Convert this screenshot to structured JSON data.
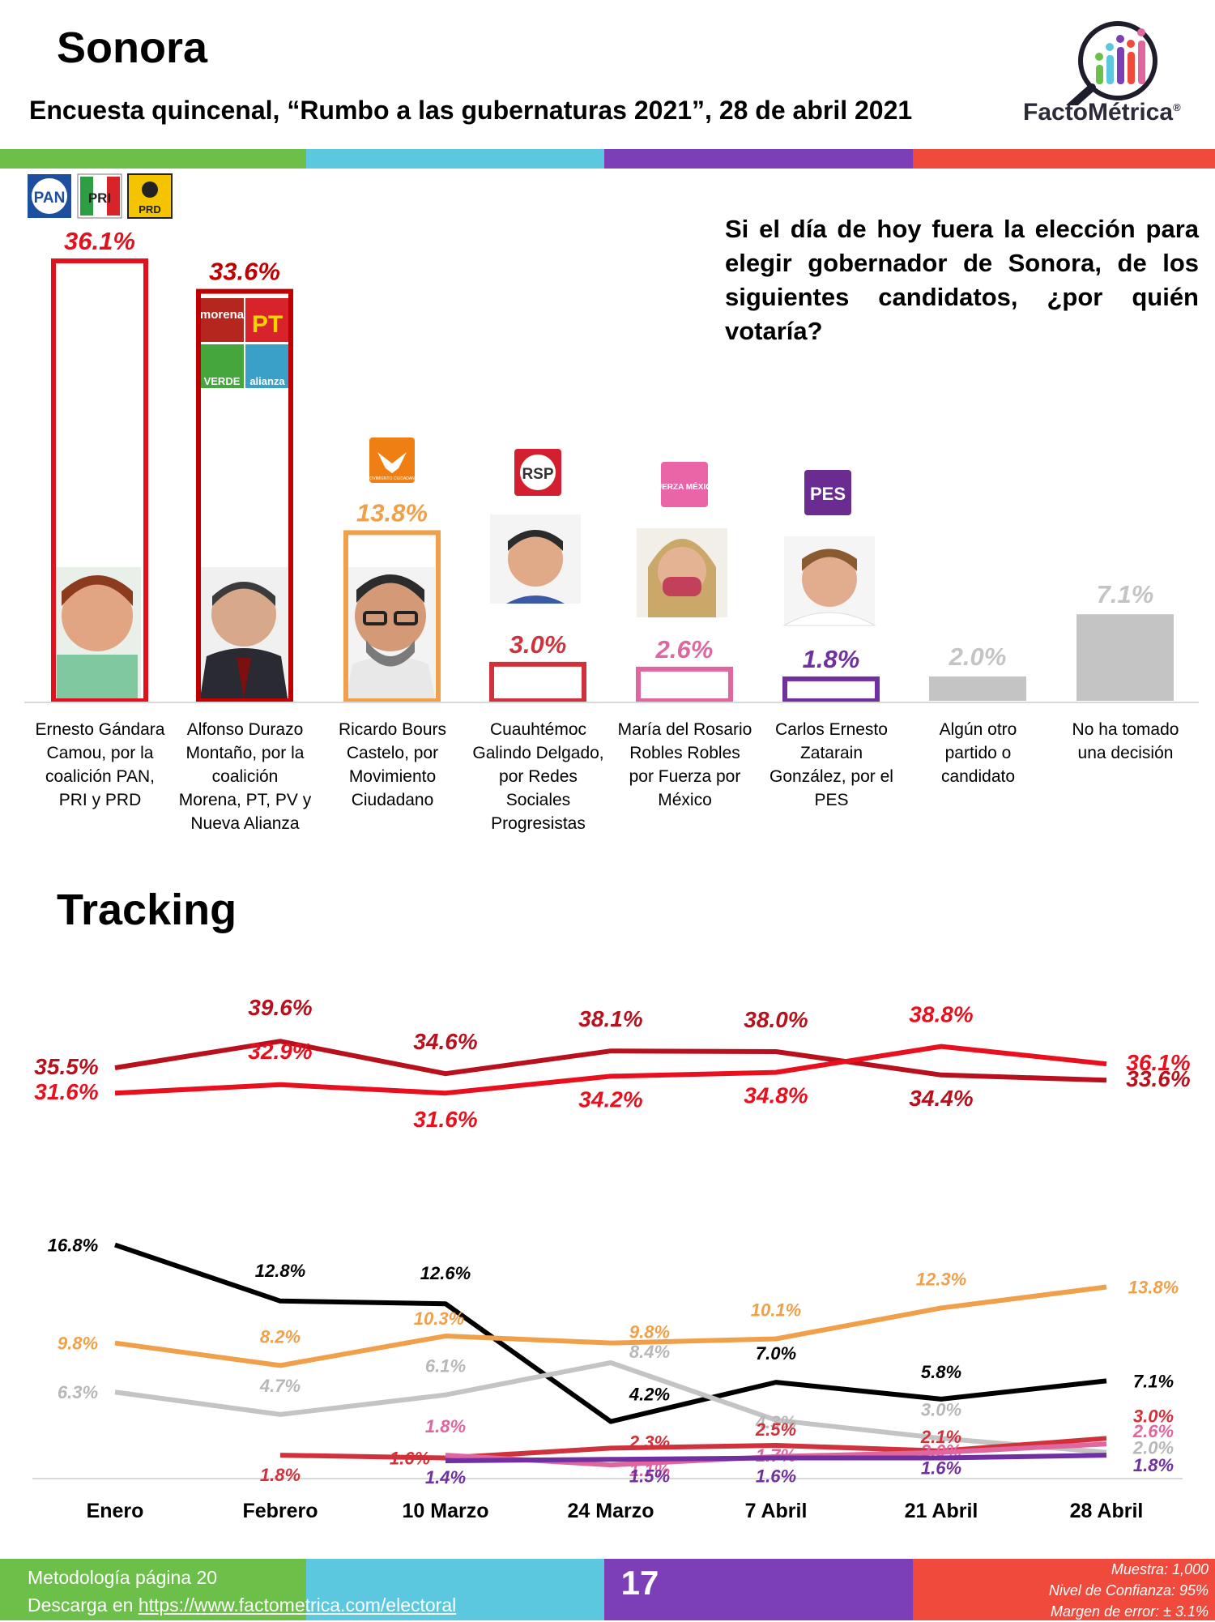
{
  "header": {
    "title": "Sonora",
    "subtitle": "Encuesta quincenal, “Rumbo a las gubernaturas 2021”, 28 de abril 2021",
    "brand": "FactoMétrica",
    "brand_mark": "®"
  },
  "colors": {
    "green": "#6cc04a",
    "cyan": "#5bc8e0",
    "purple": "#7d3fb8",
    "red": "#f04a3c"
  },
  "question": "Si el día de hoy fuera la elección para elegir gobernador de Sonora, de los siguientes candidatos, ¿por quién votaría?",
  "party_logos": {
    "coalition_a": [
      "PAN",
      "PRI",
      "PRD"
    ],
    "coalition_b": [
      "morena",
      "PT",
      "VERDE",
      "alianza"
    ],
    "mc": "MOVIMIENTO CIUDADANO",
    "rsp": "RSP",
    "fxm": "FUERZA MÉXICO",
    "pes": "PES"
  },
  "chart_data": [
    {
      "type": "bar",
      "categories": [
        "Ernesto Gándara Camou, por la coalición PAN, PRI y PRD",
        "Alfonso Durazo Montaño, por la coalición Morena, PT, PV y Nueva Alianza",
        "Ricardo Bours Castelo, por Movimiento Ciudadano",
        "Cuauhtémoc Galindo Delgado, por Redes Sociales Progresistas",
        "María del Rosario Robles Robles por Fuerza por México",
        "Carlos Ernesto Zatarain González, por el PES",
        "Algún otro partido o candidato",
        "No ha tomado una decisión"
      ],
      "label_lines": [
        [
          "Ernesto Gándara",
          "Camou, por la",
          "coalición PAN,",
          "PRI y PRD"
        ],
        [
          "Alfonso Durazo",
          "Montaño, por la",
          "coalición",
          "Morena, PT, PV y",
          "Nueva Alianza"
        ],
        [
          "Ricardo Bours",
          "Castelo, por",
          "Movimiento",
          "Ciudadano"
        ],
        [
          "Cuauhtémoc",
          "Galindo Delgado,",
          "por Redes",
          "Sociales",
          "Progresistas"
        ],
        [
          "María del Rosario",
          "Robles Robles",
          "por Fuerza por",
          "México"
        ],
        [
          "Carlos Ernesto",
          "Zatarain",
          "González, por el",
          "PES"
        ],
        [
          "Algún otro",
          "partido o",
          "candidato"
        ],
        [
          "No ha tomado",
          "una decisión"
        ]
      ],
      "values": [
        36.1,
        33.6,
        13.8,
        3.0,
        2.6,
        1.8,
        2.0,
        7.1
      ],
      "value_labels": [
        "36.1%",
        "33.6%",
        "13.8%",
        "3.0%",
        "2.6%",
        "1.8%",
        "2.0%",
        "7.1%"
      ],
      "colors": [
        "#e3101e",
        "#c00000",
        "#f0a04b",
        "#d0323c",
        "#e066a0",
        "#7030a0",
        "#c4c4c4",
        "#c4c4c4"
      ],
      "ylim": [
        0,
        36.1
      ]
    },
    {
      "type": "line",
      "title": "Tracking",
      "x": [
        "Enero",
        "Febrero",
        "10 Marzo",
        "24 Marzo",
        "7 Abril",
        "21 Abril",
        "28 Abril"
      ],
      "series": [
        {
          "values": [
            35.5,
            39.6,
            34.6,
            38.1,
            38.0,
            34.4,
            33.6
          ],
          "color": "#b8101c",
          "labels": [
            "35.5%",
            "39.6%",
            "34.6%",
            "38.1%",
            "38.0%",
            "34.4%",
            "33.6%"
          ]
        },
        {
          "values": [
            31.6,
            32.9,
            31.6,
            34.2,
            34.8,
            38.8,
            36.1
          ],
          "color": "#e8101e",
          "labels": [
            "31.6%",
            "32.9%",
            "31.6%",
            "34.2%",
            "34.8%",
            "38.8%",
            "36.1%"
          ]
        },
        {
          "values": [
            16.8,
            12.8,
            12.6,
            4.2,
            7.0,
            5.8,
            7.1
          ],
          "color": "#000000",
          "labels": [
            "16.8%",
            "12.8%",
            "12.6%",
            "4.2%",
            "7.0%",
            "5.8%",
            "7.1%"
          ]
        },
        {
          "values": [
            9.8,
            8.2,
            10.3,
            9.8,
            10.1,
            12.3,
            13.8
          ],
          "color": "#f0a04b",
          "labels": [
            "9.8%",
            "8.2%",
            "10.3%",
            "9.8%",
            "10.1%",
            "12.3%",
            "13.8%"
          ]
        },
        {
          "values": [
            6.3,
            4.7,
            6.1,
            8.4,
            4.3,
            3.0,
            2.0
          ],
          "color": "#c4c4c4",
          "labels": [
            "6.3%",
            "4.7%",
            "6.1%",
            "8.4%",
            "4.3%",
            "3.0%",
            "2.0%"
          ]
        },
        {
          "values": [
            null,
            1.8,
            1.6,
            2.3,
            2.5,
            2.1,
            3.0
          ],
          "color": "#d0323c",
          "labels": [
            "",
            "1.8%",
            "1.6%",
            "2.3%",
            "2.5%",
            "2.1%",
            "3.0%"
          ]
        },
        {
          "values": [
            null,
            null,
            1.8,
            1.1,
            1.7,
            2.0,
            2.6
          ],
          "color": "#e066a0",
          "labels": [
            "",
            "",
            "1.8%",
            "1.1%",
            "1.7%",
            "2.0%",
            "2.6%"
          ]
        },
        {
          "values": [
            null,
            null,
            1.4,
            1.5,
            1.6,
            1.6,
            1.8
          ],
          "color": "#7030a0",
          "labels": [
            "",
            "",
            "1.4%",
            "1.5%",
            "1.6%",
            "1.6%",
            "1.8%"
          ]
        }
      ]
    }
  ],
  "footer": {
    "methodology": "Metodología página 20",
    "download_prefix": "Descarga en ",
    "download_link": "https://www.factometrica.com/electoral",
    "page_number": "17",
    "sample": "Muestra:  1,000",
    "confidence": "Nivel de Confianza: 95%",
    "error": "Margen de error: ± 3.1%"
  }
}
